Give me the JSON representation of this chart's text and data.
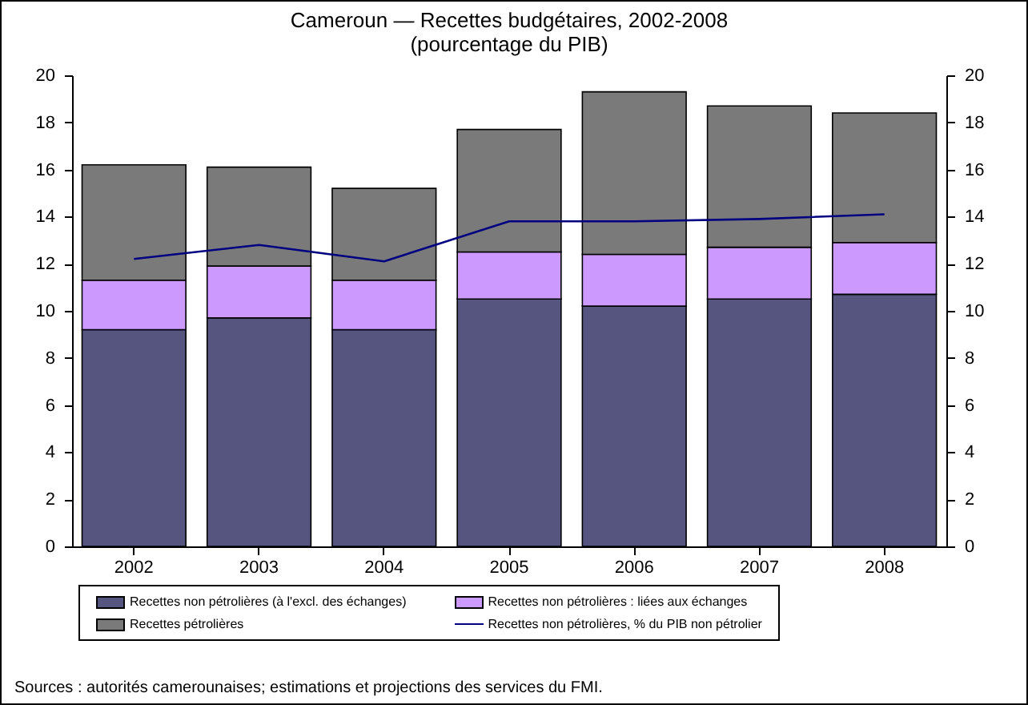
{
  "chart_data": {
    "type": "bar",
    "title": "Cameroun — Recettes budgétaires, 2002-2008",
    "subtitle": "(pourcentage du PIB)",
    "categories": [
      "2002",
      "2003",
      "2004",
      "2005",
      "2006",
      "2007",
      "2008"
    ],
    "stacked": true,
    "series": [
      {
        "name": "Recettes non pétrolières (à l'excl. des échanges)",
        "color": "#55557f",
        "values": [
          9.2,
          9.7,
          9.2,
          10.5,
          10.2,
          10.5,
          10.7
        ]
      },
      {
        "name": "Recettes non pétrolières : liées aux échanges",
        "color": "#cc99ff",
        "values": [
          2.1,
          2.2,
          2.1,
          2.0,
          2.2,
          2.2,
          2.2
        ]
      },
      {
        "name": "Recettes pétrolières",
        "color": "#7a7a7a",
        "values": [
          4.9,
          4.2,
          3.9,
          5.2,
          6.9,
          6.0,
          5.5
        ]
      },
      {
        "name": "Recettes non pétrolières, % du PIB non pétrolier",
        "color": "#000080",
        "type": "line",
        "axis": "y2",
        "values": [
          12.2,
          12.8,
          12.1,
          13.8,
          13.8,
          13.9,
          14.1
        ]
      }
    ],
    "ylim": [
      0,
      20
    ],
    "yticks": [
      0,
      2,
      4,
      6,
      8,
      10,
      12,
      14,
      16,
      18,
      20
    ],
    "y2lim": [
      0,
      20
    ],
    "y2ticks": [
      0,
      2,
      4,
      6,
      8,
      10,
      12,
      14,
      16,
      18,
      20
    ],
    "legend": "bottom",
    "marker": "none",
    "annotations": [
      "Sources : autorités camerounaises; estimations et projections des services du FMI."
    ]
  }
}
